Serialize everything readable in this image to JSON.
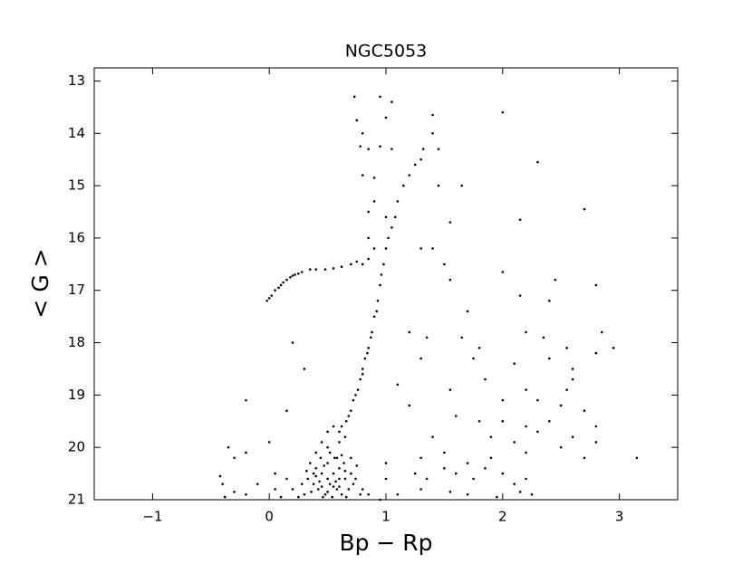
{
  "chart_data": {
    "type": "scatter",
    "title": "NGC5053",
    "x_label": "Bp − Rp",
    "y_label": "< G >",
    "color": "#000000",
    "xlim": [
      -1.5,
      3.5
    ],
    "ylim": [
      21,
      12.75
    ],
    "xticks": [
      {
        "value": -1,
        "label": "−1"
      },
      0,
      1,
      2,
      3
    ],
    "yticks": [
      13,
      14,
      15,
      16,
      17,
      18,
      19,
      20,
      21
    ],
    "x": [
      -0.02,
      0,
      0.02,
      0.05,
      0.08,
      0.1,
      0.12,
      0.15,
      0.18,
      0.2,
      0.22,
      0.25,
      0.28,
      0.35,
      0.4,
      0.48,
      0.55,
      0.62,
      0.7,
      0.75,
      0.8,
      0.85,
      1,
      0.98,
      0.95,
      0.93,
      0.9,
      0.88,
      0.85,
      0.82,
      0.8,
      0.78,
      0.76,
      0.72,
      0.7,
      0.68,
      1.02,
      1.05,
      1.08,
      1.1,
      1.15,
      1.2,
      1.25,
      1.3,
      1.32,
      0.92,
      0.96,
      0.87,
      0.84,
      0.8,
      0.74,
      0.66,
      0.62,
      0.6,
      0.5,
      0.55,
      0.45,
      0.4,
      0.5,
      0.6,
      0.65,
      0.58,
      0.35,
      0.4,
      0.45,
      0.5,
      0.55,
      0.6,
      0.65,
      0.7,
      0.38,
      0.42,
      0.48,
      0.52,
      0.58,
      0.62,
      0.68,
      0.72,
      0.78,
      0.3,
      0.33,
      0.44,
      0.5,
      0.56,
      0.6,
      0.64,
      0.46,
      0.54,
      0.4,
      0.36,
      0.66,
      0.74,
      0.8,
      0.25,
      0.28,
      0.85,
      0.52,
      0.47,
      0.57,
      0.43,
      0.62,
      0.7,
      0.75,
      0.32,
      0.5,
      0.55,
      0.6,
      0.45,
      0.38,
      0.65,
      0.73,
      0.95,
      1.05,
      1,
      1.4,
      2,
      0.75,
      0.8,
      0.78,
      0.85,
      0.95,
      1.05,
      1.4,
      1.45,
      2.3,
      0.8,
      0.9,
      1.45,
      1.65,
      0.9,
      0.85,
      1,
      1.55,
      2.15,
      2.7,
      0.85,
      0.9,
      1.3,
      1.4,
      1.5,
      1.55,
      2,
      2.45,
      2.4,
      2.8,
      1.7,
      2.15,
      1.2,
      1.35,
      1.65,
      1.8,
      2.2,
      2.35,
      2.55,
      2.85,
      2.95,
      2.8,
      0.2,
      1.3,
      1.75,
      1.85,
      2.1,
      2.4,
      2.6,
      0.3,
      1.1,
      1.55,
      2.2,
      2.55,
      2.6,
      2,
      2.3,
      2.5,
      2.7,
      2.8,
      -0.2,
      0.15,
      1.2,
      1.6,
      1.8,
      2,
      2.2,
      2.4,
      1.4,
      1.9,
      2.1,
      2.3,
      2.6,
      2.8,
      3.15,
      -0.35,
      -0.3,
      -0.2,
      0,
      1.3,
      1.5,
      1.7,
      1.9,
      2.2,
      2.5,
      2.7,
      1.25,
      1.35,
      1.5,
      1.6,
      1.75,
      1.85,
      2,
      2.1,
      2.2,
      -0.42,
      -0.4,
      -0.38,
      -0.3,
      -0.2,
      -0.1,
      0.05,
      0.05,
      0.1,
      0.15,
      0.2,
      1,
      1.1,
      1.3,
      1.55,
      1.7,
      1.95,
      2.15,
      2.25,
      1,
      0.95
    ],
    "values": [
      17.2,
      17.15,
      17.1,
      17,
      16.95,
      16.9,
      16.85,
      16.8,
      16.75,
      16.72,
      16.7,
      16.68,
      16.65,
      16.6,
      16.6,
      16.6,
      16.58,
      16.55,
      16.5,
      16.45,
      16.5,
      16.4,
      16.2,
      16.5,
      16.9,
      17.2,
      17.5,
      17.8,
      18.1,
      18.3,
      18.5,
      18.7,
      18.9,
      19.1,
      19.3,
      19.4,
      16,
      15.8,
      15.6,
      15.3,
      15,
      14.8,
      14.6,
      14.5,
      14.3,
      17.4,
      16.7,
      17.9,
      18.2,
      18.6,
      19,
      19.5,
      19.6,
      19.7,
      19.7,
      19.6,
      19.9,
      20.1,
      20,
      19.9,
      19.8,
      20.2,
      20.3,
      20.4,
      20.5,
      20.3,
      20.5,
      20.4,
      20.6,
      20.5,
      20.7,
      20.8,
      20.9,
      20.7,
      20.8,
      20.9,
      20.8,
      20.7,
      20.9,
      20.9,
      20.6,
      20.2,
      20.6,
      20.2,
      20.6,
      20.3,
      20.95,
      20.95,
      20.55,
      20.85,
      20.95,
      20.6,
      20.8,
      20.95,
      20.7,
      20.9,
      20.1,
      20.35,
      20.65,
      20.65,
      20.15,
      20.2,
      20.35,
      20.45,
      20.85,
      20.75,
      20.75,
      20.75,
      20.5,
      20.45,
      13.3,
      13.3,
      13.4,
      13.7,
      13.65,
      13.6,
      13.75,
      14,
      14.25,
      14.3,
      14.25,
      14.3,
      14,
      14.3,
      14.55,
      14.8,
      14.85,
      15,
      15,
      15.3,
      15.5,
      15.6,
      15.7,
      15.65,
      15.45,
      16,
      16.2,
      16.2,
      16.2,
      16.5,
      16.8,
      16.65,
      16.8,
      17.2,
      16.9,
      17.4,
      17.1,
      17.8,
      17.9,
      17.9,
      18.1,
      17.8,
      17.9,
      18.1,
      17.8,
      18.1,
      18.2,
      18,
      18.3,
      18.3,
      18.7,
      18.4,
      18.3,
      18.5,
      18.5,
      18.8,
      18.9,
      18.9,
      18.9,
      18.7,
      19.1,
      19.1,
      19.2,
      19.3,
      19.6,
      19.1,
      19.3,
      19.2,
      19.4,
      19.5,
      19.5,
      19.6,
      19.5,
      19.8,
      19.8,
      19.9,
      19.7,
      19.8,
      19.9,
      20.2,
      20,
      20.2,
      20.1,
      19.9,
      20.2,
      20.1,
      20.3,
      20.2,
      20.1,
      20,
      20.2,
      20.5,
      20.6,
      20.4,
      20.5,
      20.6,
      20.4,
      20.5,
      20.7,
      20.6,
      20.55,
      20.7,
      20.95,
      20.85,
      20.9,
      20.7,
      20.5,
      20.8,
      20.95,
      20.6,
      20.8,
      20.6,
      20.9,
      20.8,
      20.85,
      20.9,
      20.95,
      20.85,
      20.9,
      20.3,
      21
    ]
  }
}
